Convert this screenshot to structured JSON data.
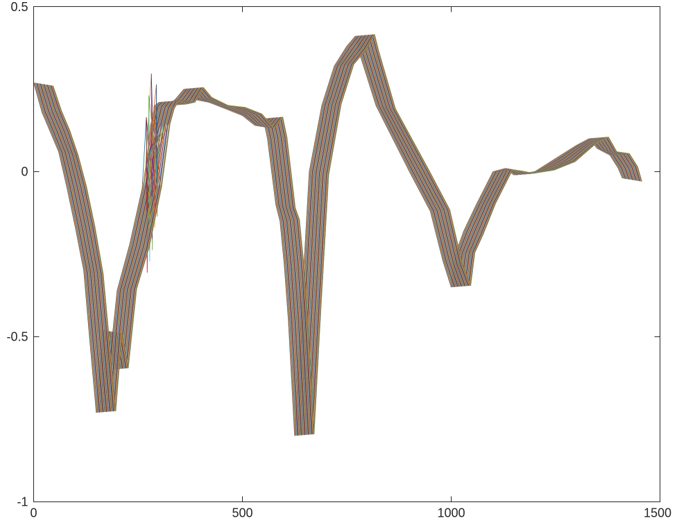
{
  "chart_data": {
    "type": "line",
    "title": "",
    "xlabel": "",
    "ylabel": "",
    "xlim": [
      0,
      1500
    ],
    "ylim": [
      -1,
      0.5
    ],
    "x_ticks": [
      0,
      500,
      1000,
      1500
    ],
    "x_tick_labels": [
      "0",
      "500",
      "1000",
      "1500"
    ],
    "y_ticks": [
      -1,
      -0.5,
      0,
      0.5
    ],
    "y_tick_labels": [
      "-1",
      "-0.5",
      "0",
      "0.5"
    ],
    "grid": false,
    "legend": "none",
    "series_count": 40,
    "series_shift_step_x": 1.2,
    "series_colors": [
      "#0072BD",
      "#D95319",
      "#EDB120",
      "#7E2F8E",
      "#77AC30",
      "#4DBEEE",
      "#A2142F"
    ],
    "base_curve": {
      "x": [
        0,
        20,
        40,
        60,
        80,
        100,
        120,
        135,
        150,
        165,
        180,
        200,
        230,
        260,
        280,
        290,
        300,
        320,
        340,
        360,
        380,
        420,
        460,
        500,
        530,
        550,
        560,
        580,
        590,
        600,
        610,
        625,
        640,
        660,
        690,
        720,
        750,
        770,
        780,
        820,
        900,
        950,
        980,
        1000,
        1010,
        1030,
        1060,
        1100,
        1130,
        1150,
        1200,
        1250,
        1300,
        1330,
        1350,
        1380,
        1400,
        1410
      ],
      "y": [
        0.27,
        0.18,
        0.12,
        0.06,
        -0.05,
        -0.17,
        -0.3,
        -0.52,
        -0.73,
        -0.48,
        -0.6,
        -0.36,
        -0.22,
        -0.05,
        0.14,
        0.2,
        0.21,
        0.2,
        0.22,
        0.25,
        0.22,
        0.21,
        0.19,
        0.17,
        0.14,
        0.16,
        0.1,
        -0.1,
        -0.15,
        -0.28,
        -0.45,
        -0.8,
        -0.45,
        0.0,
        0.2,
        0.32,
        0.38,
        0.41,
        0.36,
        0.2,
        0.0,
        -0.12,
        -0.27,
        -0.35,
        -0.25,
        -0.18,
        -0.1,
        0.0,
        0.01,
        -0.01,
        0.0,
        0.04,
        0.08,
        0.1,
        0.07,
        0.05,
        0.01,
        -0.02
      ]
    },
    "spike_region": {
      "x_start": 270,
      "x_end": 305,
      "ymin": -0.34,
      "ymax": 0.33
    }
  }
}
